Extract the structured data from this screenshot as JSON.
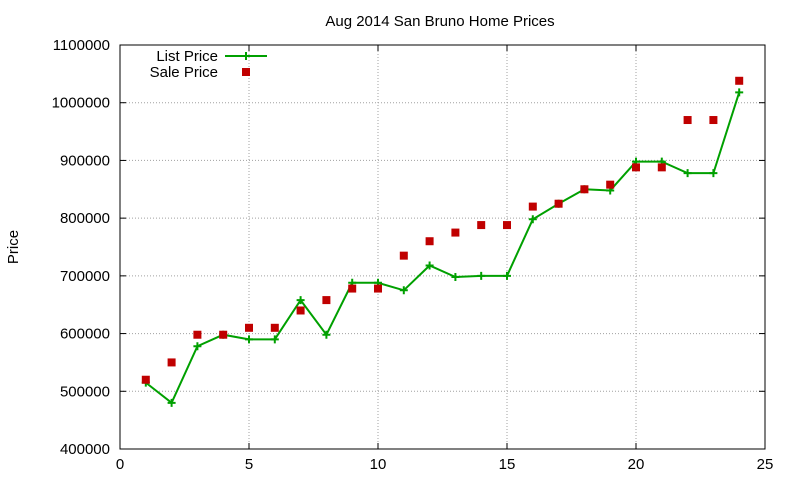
{
  "chart_data": {
    "type": "line",
    "title": "Aug 2014 San Bruno Home Prices",
    "xlabel": "",
    "ylabel": "Price",
    "xlim": [
      0,
      25
    ],
    "ylim": [
      400000,
      1100000
    ],
    "xticks": [
      0,
      5,
      10,
      15,
      20,
      25
    ],
    "yticks": [
      400000,
      500000,
      600000,
      700000,
      800000,
      900000,
      1000000,
      1100000
    ],
    "grid": true,
    "legend_position": "top-left",
    "x": [
      1,
      2,
      3,
      4,
      5,
      6,
      7,
      8,
      9,
      10,
      11,
      12,
      13,
      14,
      15,
      16,
      17,
      18,
      19,
      20,
      21,
      22,
      23,
      24
    ],
    "series": [
      {
        "name": "List Price",
        "style": "line-with-plus-markers",
        "color": "#00a000",
        "values": [
          515000,
          480000,
          578000,
          598000,
          590000,
          590000,
          658000,
          598000,
          688000,
          688000,
          675000,
          718000,
          698000,
          700000,
          700000,
          798000,
          825000,
          850000,
          848000,
          898000,
          898000,
          878000,
          878000,
          1018000
        ]
      },
      {
        "name": "Sale Price",
        "style": "square-markers",
        "color": "#c00000",
        "values": [
          520000,
          550000,
          598000,
          598000,
          610000,
          610000,
          640000,
          658000,
          678000,
          678000,
          735000,
          760000,
          775000,
          788000,
          788000,
          820000,
          825000,
          850000,
          858000,
          888000,
          888000,
          970000,
          970000,
          1038000
        ]
      }
    ]
  }
}
